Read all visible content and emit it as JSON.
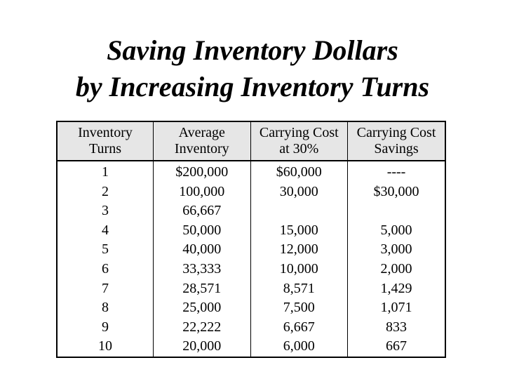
{
  "title": {
    "line1": "Saving Inventory Dollars",
    "line2": "by Increasing Inventory Turns"
  },
  "table": {
    "headers": [
      [
        "Inventory",
        "Turns"
      ],
      [
        "Average",
        "Inventory"
      ],
      [
        "Carrying Cost",
        "at 30%"
      ],
      [
        "Carrying Cost",
        "Savings"
      ]
    ],
    "rows": [
      [
        "1",
        "$200,000",
        "$60,000",
        "----"
      ],
      [
        "2",
        "100,000",
        "30,000",
        "$30,000"
      ],
      [
        "3",
        "66,667",
        "",
        ""
      ],
      [
        "4",
        "50,000",
        "15,000",
        "5,000"
      ],
      [
        "5",
        "40,000",
        "12,000",
        "3,000"
      ],
      [
        "6",
        "33,333",
        "10,000",
        "2,000"
      ],
      [
        "7",
        "28,571",
        "8,571",
        "1,429"
      ],
      [
        "8",
        "25,000",
        "7,500",
        "1,071"
      ],
      [
        "9",
        "22,222",
        "6,667",
        "833"
      ],
      [
        "10",
        "20,000",
        "6,000",
        "667"
      ]
    ]
  },
  "colors": {
    "background": "#ffffff",
    "header_fill": "#e6e6e6",
    "text": "#000000"
  }
}
